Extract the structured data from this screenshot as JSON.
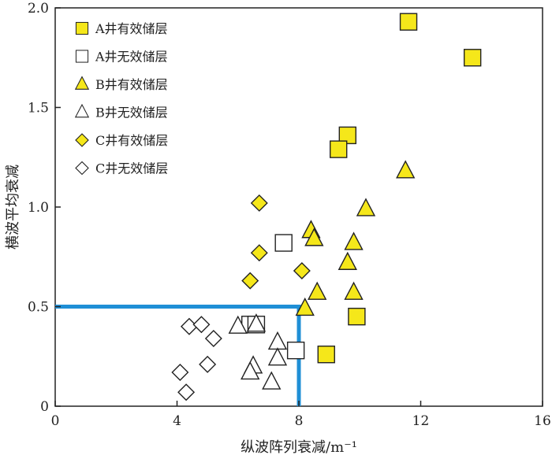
{
  "chart_data": {
    "type": "scatter",
    "xlabel": "纵波阵列衰减/m⁻¹",
    "ylabel": "横波平均衰减",
    "xlim": [
      0,
      16
    ],
    "ylim": [
      0,
      2.0
    ],
    "xticks": [
      0,
      4,
      8,
      12,
      16
    ],
    "xtick_labels": [
      "0",
      "4",
      "8",
      "12",
      "16"
    ],
    "yticks": [
      0,
      0.5,
      1.0,
      1.5,
      2.0
    ],
    "ytick_labels": [
      "0",
      "0.5",
      "1.0",
      "1.5",
      "2.0"
    ],
    "grid": false,
    "legend_position": "top-left",
    "colors": {
      "effective_fill": "#f5e71a",
      "marker_stroke": "#222222",
      "threshold_line": "#1f8fd6"
    },
    "threshold_box": {
      "x": 8,
      "y": 0.5
    },
    "series": [
      {
        "name": "A井有效储层",
        "marker": "square",
        "filled": true,
        "points": [
          [
            11.6,
            1.93
          ],
          [
            13.7,
            1.75
          ],
          [
            9.6,
            1.36
          ],
          [
            9.3,
            1.29
          ],
          [
            9.9,
            0.45
          ],
          [
            8.9,
            0.26
          ]
        ]
      },
      {
        "name": "A井无效储层",
        "marker": "square",
        "filled": false,
        "points": [
          [
            7.5,
            0.82
          ],
          [
            6.4,
            0.41
          ],
          [
            6.6,
            0.41
          ],
          [
            7.9,
            0.28
          ]
        ]
      },
      {
        "name": "B井有效储层",
        "marker": "triangle",
        "filled": true,
        "points": [
          [
            11.5,
            1.18
          ],
          [
            10.2,
            0.99
          ],
          [
            8.4,
            0.88
          ],
          [
            8.5,
            0.84
          ],
          [
            9.8,
            0.82
          ],
          [
            9.6,
            0.72
          ],
          [
            8.6,
            0.57
          ],
          [
            9.8,
            0.57
          ],
          [
            8.2,
            0.49
          ]
        ]
      },
      {
        "name": "B井无效储层",
        "marker": "triangle",
        "filled": false,
        "points": [
          [
            6.0,
            0.4
          ],
          [
            6.6,
            0.41
          ],
          [
            7.3,
            0.32
          ],
          [
            7.3,
            0.24
          ],
          [
            6.5,
            0.2
          ],
          [
            6.4,
            0.17
          ],
          [
            7.1,
            0.12
          ]
        ]
      },
      {
        "name": "C井有效储层",
        "marker": "diamond",
        "filled": true,
        "points": [
          [
            6.7,
            1.02
          ],
          [
            6.7,
            0.77
          ],
          [
            6.4,
            0.63
          ],
          [
            8.1,
            0.68
          ]
        ]
      },
      {
        "name": "C井无效储层",
        "marker": "diamond",
        "filled": false,
        "points": [
          [
            4.4,
            0.4
          ],
          [
            4.8,
            0.41
          ],
          [
            5.2,
            0.34
          ],
          [
            5.0,
            0.21
          ],
          [
            4.1,
            0.17
          ],
          [
            4.3,
            0.07
          ]
        ]
      }
    ]
  }
}
